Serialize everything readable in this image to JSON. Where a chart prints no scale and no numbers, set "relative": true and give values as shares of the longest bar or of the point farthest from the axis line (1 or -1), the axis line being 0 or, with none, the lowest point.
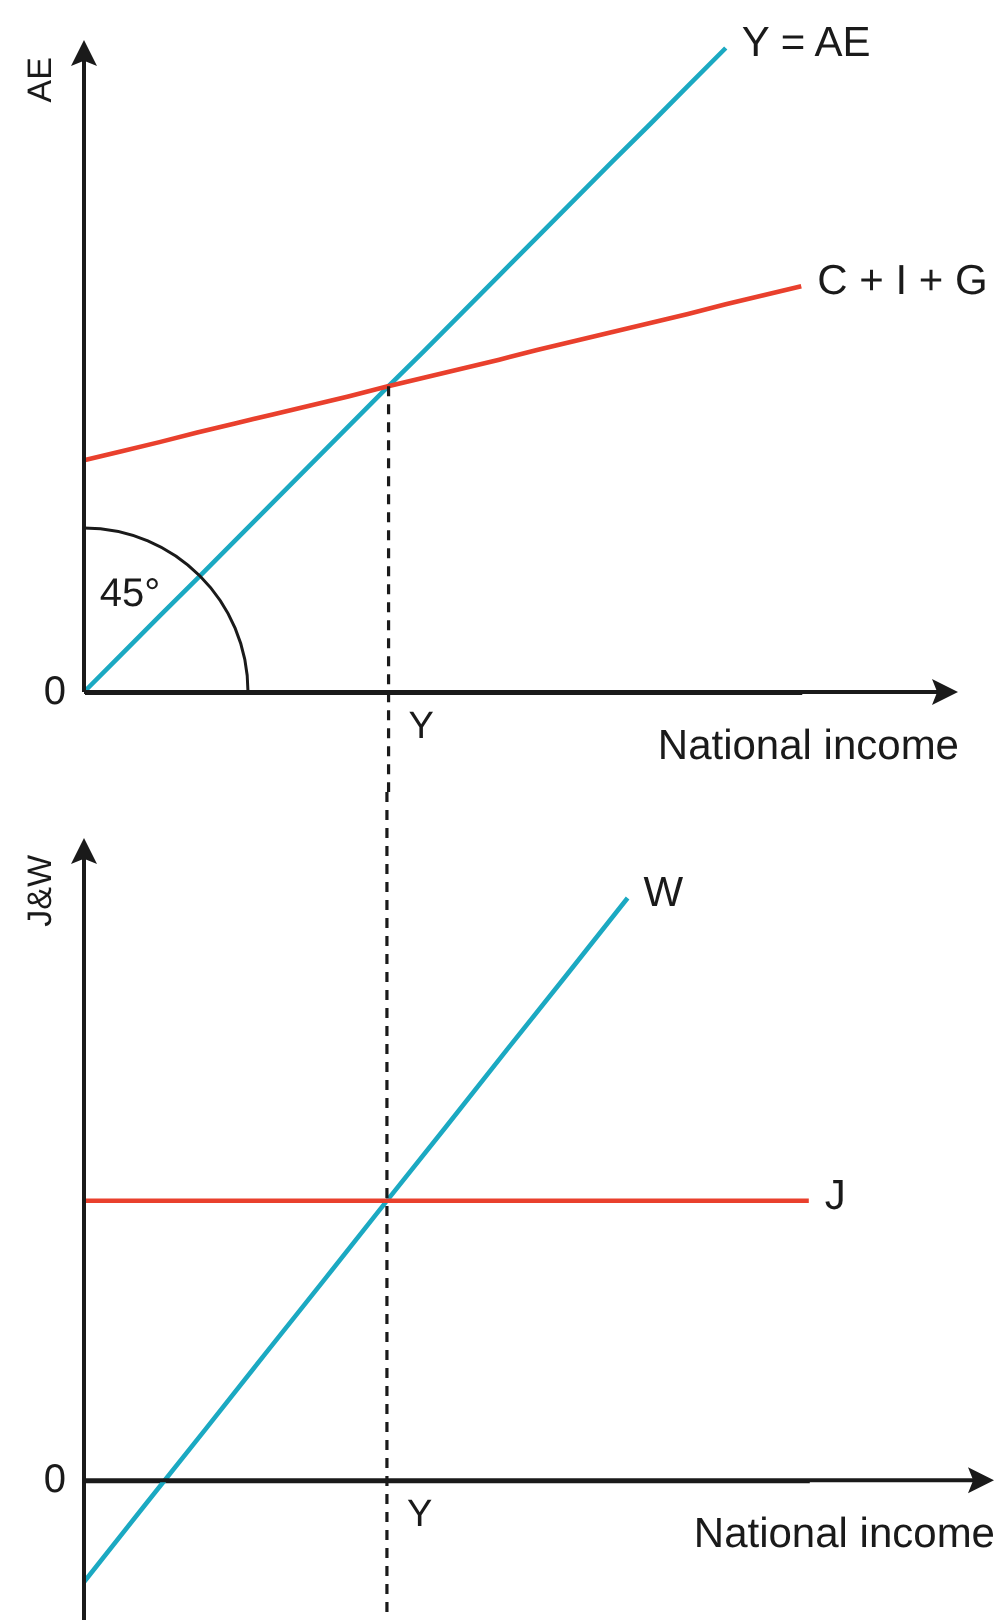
{
  "chart_data": [
    {
      "type": "line",
      "relative": true,
      "xlabel": "National income",
      "ylabel": "AE",
      "legend": false,
      "grid": false,
      "categories": [
        null,
        null,
        null,
        null,
        null,
        null,
        null,
        null,
        null,
        null,
        null,
        null,
        null,
        null,
        null,
        null,
        null,
        null,
        null,
        null
      ],
      "series": [
        {
          "name": "Y = AE",
          "color": "#1ba9c2",
          "values": [
            0,
            0.059,
            0.118,
            0.176,
            0.235,
            0.294,
            0.353,
            0.412,
            0.471,
            0.529,
            0.588,
            0.647,
            0.706,
            0.765,
            0.824,
            0.882,
            0.941,
            1,
            null,
            null
          ]
        },
        {
          "name": "C + I + G",
          "color": "#e9402d",
          "values": [
            0.36,
            0.374,
            0.388,
            0.403,
            0.417,
            0.431,
            0.445,
            0.459,
            0.474,
            0.488,
            0.502,
            0.516,
            0.531,
            0.545,
            0.559,
            0.573,
            0.587,
            0.602,
            0.616,
            0.63
          ]
        }
      ],
      "annotations": [
        "0",
        "45°",
        "Y"
      ]
    },
    {
      "type": "line",
      "relative": true,
      "xlabel": "National income",
      "ylabel": "J&W",
      "legend": false,
      "grid": false,
      "categories": [
        null,
        null,
        null,
        null,
        null,
        null,
        null,
        null,
        null,
        null,
        null,
        null,
        null
      ],
      "series": [
        {
          "name": "W",
          "color": "#1ba9c2",
          "values": [
            -0.175,
            -0.044,
            0.086,
            0.217,
            0.347,
            0.478,
            0.608,
            0.739,
            0.869,
            1,
            null,
            null,
            null
          ]
        },
        {
          "name": "J",
          "color": "#e9402d",
          "values": [
            0.48,
            0.48,
            0.48,
            0.48,
            0.48,
            0.48,
            0.48,
            0.48,
            0.48,
            0.48,
            0.48,
            0.48,
            0.48
          ]
        }
      ],
      "annotations": [
        "0",
        "Y"
      ]
    }
  ]
}
